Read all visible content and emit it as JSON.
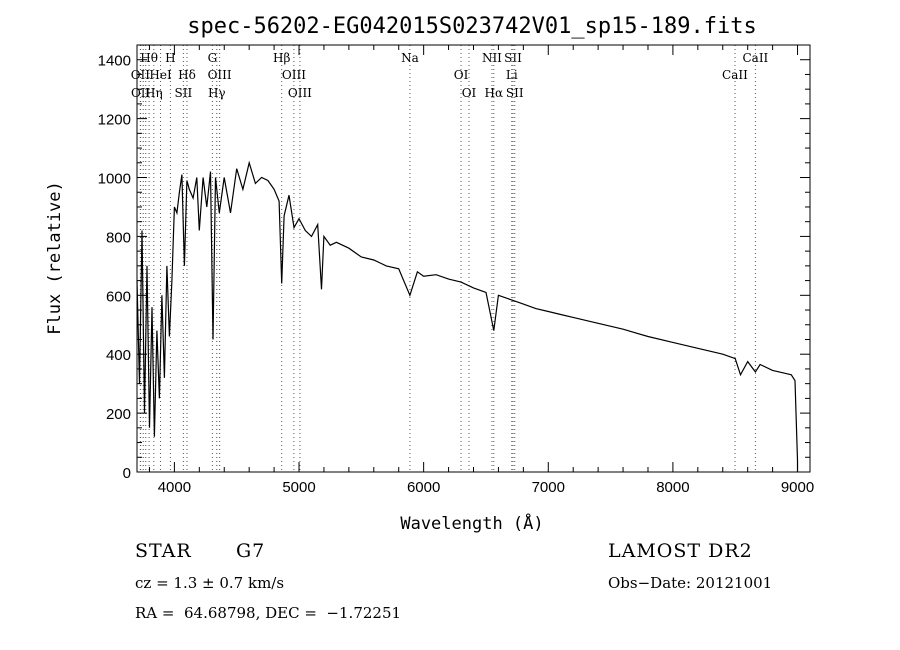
{
  "chart_data": {
    "type": "line",
    "title": "spec-56202-EG042015S023742V01_sp15-189.fits",
    "xlabel": "Wavelength (Å)",
    "ylabel": "Flux (relative)",
    "xlim": [
      3700,
      9100
    ],
    "ylim": [
      0,
      1450
    ],
    "xticks": [
      4000,
      5000,
      6000,
      7000,
      8000,
      9000
    ],
    "yticks": [
      0,
      200,
      400,
      600,
      800,
      1000,
      1200,
      1400
    ],
    "grid": false,
    "series": [
      {
        "x": [
          3700,
          3720,
          3740,
          3760,
          3780,
          3800,
          3820,
          3840,
          3860,
          3880,
          3900,
          3920,
          3940,
          3960,
          3980,
          4000,
          4020,
          4040,
          4060,
          4080,
          4100,
          4120,
          4150,
          4180,
          4200,
          4230,
          4260,
          4290,
          4310,
          4330,
          4360,
          4400,
          4450,
          4500,
          4550,
          4600,
          4650,
          4700,
          4750,
          4800,
          4840,
          4861,
          4880,
          4920,
          4960,
          5000,
          5050,
          5100,
          5150,
          5180,
          5200,
          5250,
          5300,
          5400,
          5500,
          5600,
          5700,
          5800,
          5890,
          5950,
          6000,
          6100,
          6200,
          6300,
          6400,
          6500,
          6563,
          6600,
          6700,
          6800,
          6900,
          7000,
          7100,
          7200,
          7400,
          7600,
          7800,
          8000,
          8200,
          8400,
          8500,
          8542,
          8600,
          8662,
          8700,
          8800,
          8900,
          8950,
          8980,
          9000
        ],
        "y": [
          650,
          300,
          820,
          200,
          700,
          150,
          560,
          120,
          480,
          250,
          600,
          320,
          700,
          460,
          650,
          900,
          880,
          950,
          1010,
          700,
          990,
          960,
          930,
          1000,
          820,
          1000,
          900,
          1020,
          450,
          1000,
          880,
          1000,
          880,
          1030,
          960,
          1050,
          980,
          1000,
          990,
          960,
          920,
          640,
          870,
          940,
          830,
          860,
          820,
          800,
          840,
          620,
          800,
          770,
          780,
          760,
          730,
          720,
          700,
          690,
          600,
          680,
          665,
          670,
          655,
          645,
          625,
          610,
          480,
          600,
          585,
          570,
          555,
          545,
          535,
          525,
          505,
          485,
          460,
          440,
          420,
          400,
          385,
          330,
          375,
          340,
          365,
          345,
          335,
          330,
          310,
          40
        ]
      }
    ],
    "lines": [
      {
        "name": "Hθ",
        "x": 3797,
        "row": 1,
        "color": "#555555"
      },
      {
        "name": "OII",
        "x": 3727,
        "row": 2,
        "color": "#555555"
      },
      {
        "name": "OII",
        "x": 3729,
        "row": 3,
        "color": "#555555"
      },
      {
        "name": "HeI",
        "x": 3889,
        "row": 2,
        "color": "#555555"
      },
      {
        "name": "Hη",
        "x": 3835,
        "row": 3,
        "color": "#555555"
      },
      {
        "name": "H",
        "x": 3968,
        "row": 1,
        "color": "#555555"
      },
      {
        "name": "Hδ",
        "x": 4101,
        "row": 2,
        "color": "#555555"
      },
      {
        "name": "SII",
        "x": 4072,
        "row": 3,
        "color": "#555555"
      },
      {
        "name": "G",
        "x": 4305,
        "row": 1,
        "color": "#555555"
      },
      {
        "name": "OIII",
        "x": 4363,
        "row": 2,
        "color": "#555555"
      },
      {
        "name": "Hγ",
        "x": 4340,
        "row": 3,
        "color": "#555555"
      },
      {
        "name": "Hβ",
        "x": 4861,
        "row": 1,
        "color": "#555555"
      },
      {
        "name": "OIII",
        "x": 4959,
        "row": 2,
        "color": "#555555"
      },
      {
        "name": "OIII",
        "x": 5007,
        "row": 3,
        "color": "#555555"
      },
      {
        "name": "Na",
        "x": 5890,
        "row": 1,
        "color": "#cc2222"
      },
      {
        "name": "OI",
        "x": 6300,
        "row": 2,
        "color": "#555555"
      },
      {
        "name": "OI",
        "x": 6364,
        "row": 3,
        "color": "#555555"
      },
      {
        "name": "NII",
        "x": 6548,
        "row": 1,
        "color": "#555555"
      },
      {
        "name": "Hα",
        "x": 6563,
        "row": 3,
        "color": "#cc2222"
      },
      {
        "name": "SII",
        "x": 6717,
        "row": 1,
        "color": "#cc2222"
      },
      {
        "name": "Li",
        "x": 6707,
        "row": 2,
        "color": "#cc2222"
      },
      {
        "name": "SII",
        "x": 6731,
        "row": 3,
        "color": "#cc2222"
      },
      {
        "name": "CaII",
        "x": 8498,
        "row": 2,
        "color": "#cc2222"
      },
      {
        "name": "CaII",
        "x": 8662,
        "row": 1,
        "color": "#cc2222"
      },
      {
        "name": "",
        "x": 3750,
        "row": 0,
        "color": "#555555"
      },
      {
        "name": "",
        "x": 3770,
        "row": 0,
        "color": "#555555"
      }
    ]
  },
  "footer": {
    "object_class": "STAR",
    "subclass": "G7",
    "survey": "LAMOST DR2",
    "redshift": "cz = 1.3 ± 0.7 km/s",
    "obs_date": "Obs−Date: 20121001",
    "coords": "RA =  64.68798, DEC =  −1.72251"
  }
}
